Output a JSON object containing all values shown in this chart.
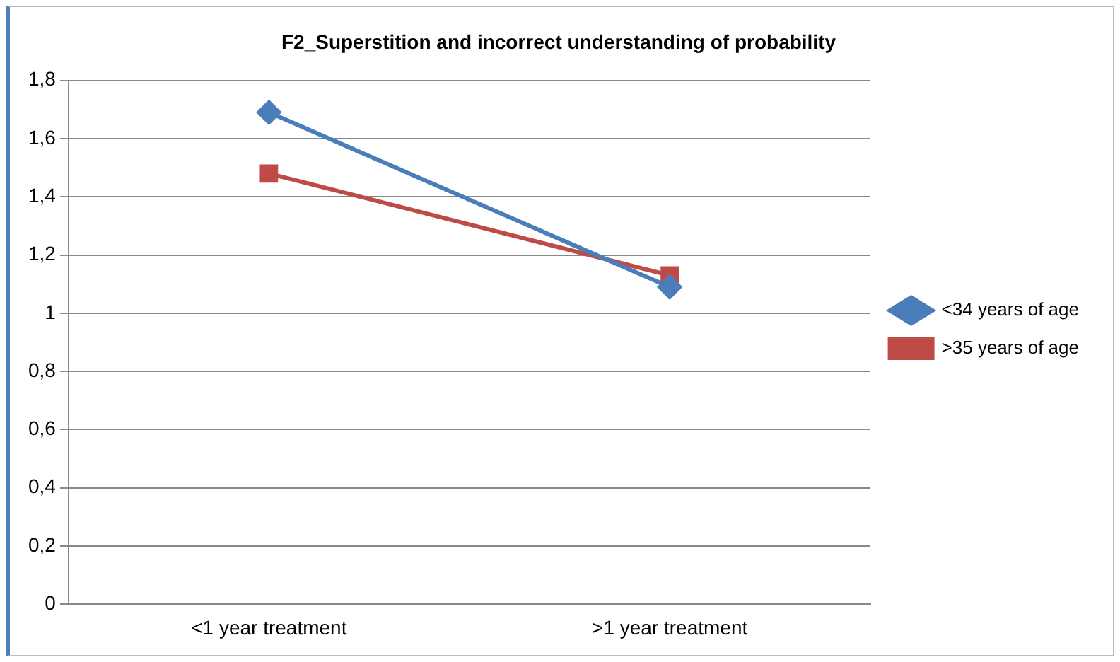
{
  "chart_data": {
    "type": "line",
    "title": "F2_Superstition and incorrect understanding of probability",
    "categories": [
      "<1 year treatment",
      ">1 year treatment"
    ],
    "series": [
      {
        "name": "<34 years of age",
        "color": "#4a7ebb",
        "values": [
          1.69,
          1.09
        ],
        "marker": "diamond"
      },
      {
        "name": ">35 years of age",
        "color": "#be4b48",
        "values": [
          1.48,
          1.13
        ],
        "marker": "square"
      }
    ],
    "ylim": [
      0,
      1.8
    ],
    "yticks": [
      {
        "value": 0,
        "label": "0"
      },
      {
        "value": 0.2,
        "label": "0,2"
      },
      {
        "value": 0.4,
        "label": "0,4"
      },
      {
        "value": 0.6,
        "label": "0,6"
      },
      {
        "value": 0.8,
        "label": "0,8"
      },
      {
        "value": 1,
        "label": "1"
      },
      {
        "value": 1.2,
        "label": "1,2"
      },
      {
        "value": 1.4,
        "label": "1,4"
      },
      {
        "value": 1.6,
        "label": "1,6"
      },
      {
        "value": 1.8,
        "label": "1,8"
      }
    ],
    "grid": "y",
    "legend": "right",
    "line_style": "solid"
  }
}
